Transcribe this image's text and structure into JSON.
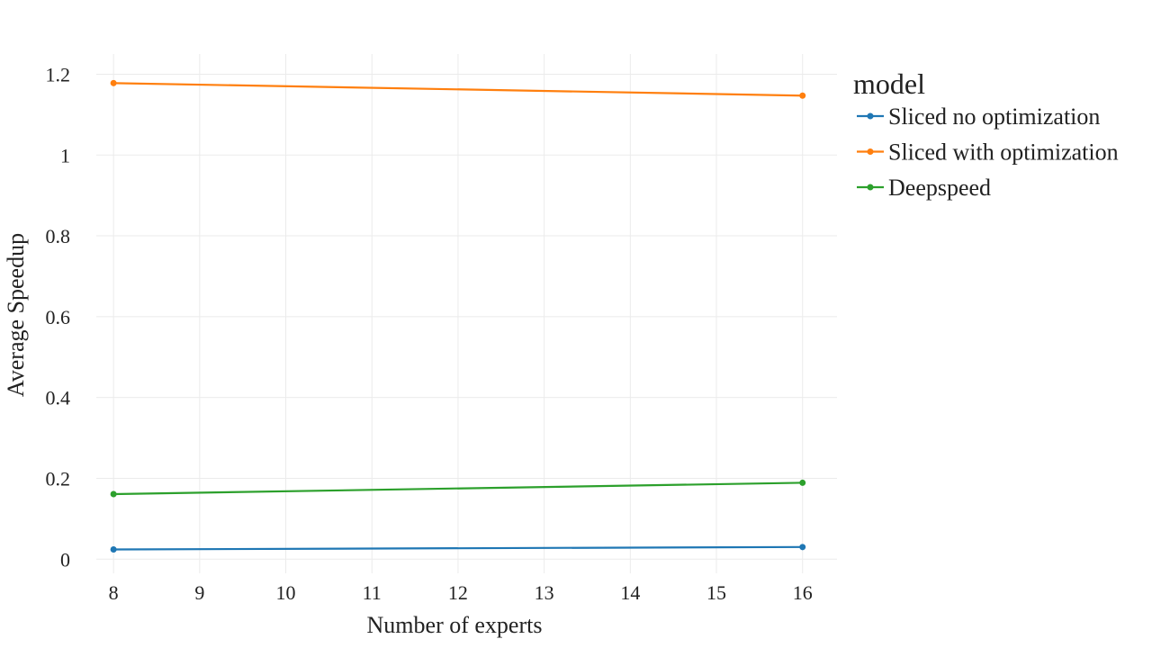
{
  "chart_data": {
    "type": "line",
    "xlabel": "Number of experts",
    "ylabel": "Average Speedup",
    "xlim": [
      7.8,
      16.4
    ],
    "ylim": [
      -0.035,
      1.25
    ],
    "x_ticks": [
      8,
      9,
      10,
      11,
      12,
      13,
      14,
      15,
      16
    ],
    "y_ticks": [
      0,
      0.2,
      0.4,
      0.6,
      0.8,
      1,
      1.2
    ],
    "y_tick_labels": [
      "0",
      "0.2",
      "0.4",
      "0.6",
      "0.8",
      "1",
      "1.2"
    ],
    "x": [
      8,
      16
    ],
    "grid": true,
    "legend": {
      "title": "model",
      "placement": "right"
    },
    "series": [
      {
        "name": "Sliced no optimization",
        "color": "#1f77b4",
        "values": [
          0.024,
          0.03
        ]
      },
      {
        "name": "Sliced with optimization",
        "color": "#ff7f0e",
        "values": [
          1.178,
          1.147
        ]
      },
      {
        "name": "Deepspeed",
        "color": "#2ca02c",
        "values": [
          0.161,
          0.189
        ]
      }
    ]
  }
}
